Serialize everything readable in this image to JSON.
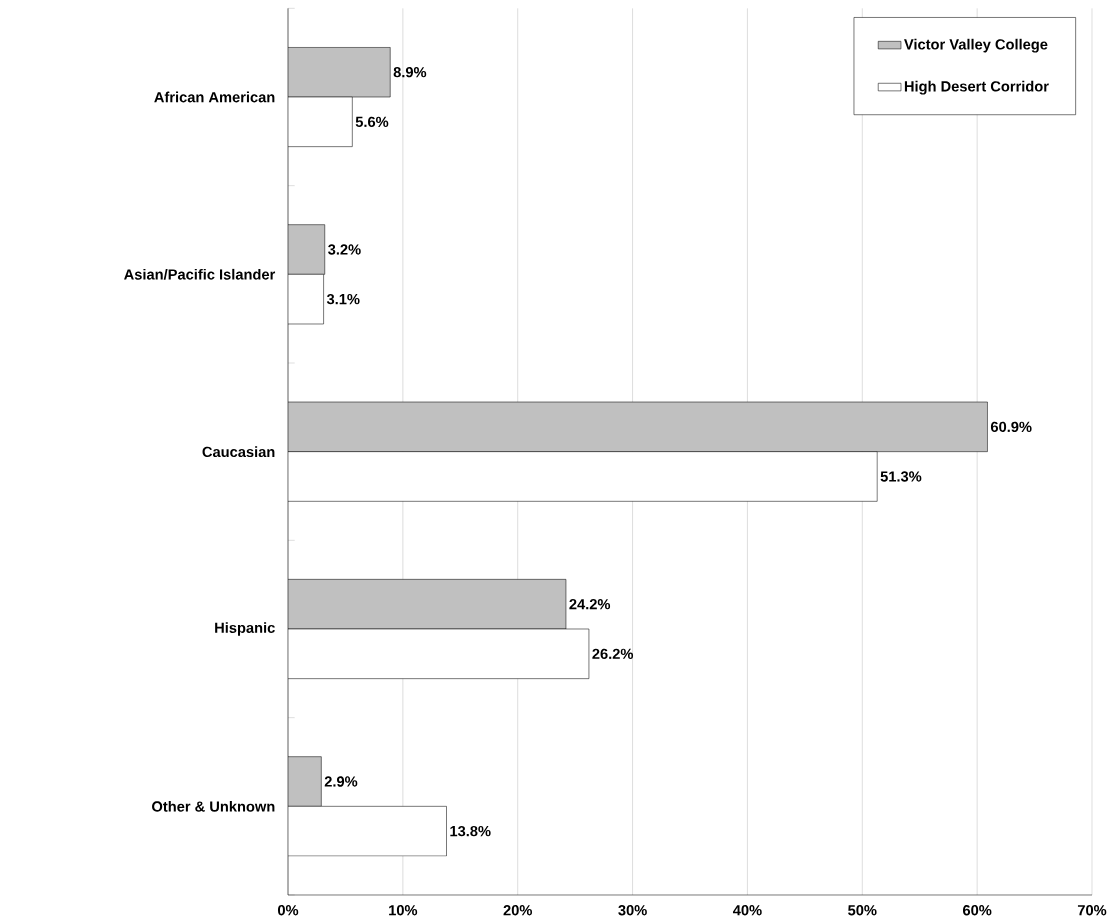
{
  "chart_data": {
    "type": "bar",
    "orientation": "horizontal",
    "categories": [
      "African American",
      "Asian/Pacific Islander",
      "Caucasian",
      "Hispanic",
      "Other & Unknown"
    ],
    "series": [
      {
        "name": "Victor Valley College",
        "color": "#c0c0c0",
        "values": [
          8.9,
          3.2,
          60.9,
          24.2,
          2.9
        ],
        "value_labels": [
          "8.9%",
          "3.2%",
          "60.9%",
          "24.2%",
          "2.9%"
        ]
      },
      {
        "name": "High Desert Corridor",
        "color": "#ffffff",
        "values": [
          5.6,
          3.1,
          51.3,
          26.2,
          13.8
        ],
        "value_labels": [
          "5.6%",
          "3.1%",
          "51.3%",
          "26.2%",
          "13.8%"
        ]
      }
    ],
    "xlim": [
      0,
      70
    ],
    "xticks": [
      {
        "value": 0,
        "label": "0%"
      },
      {
        "value": 10,
        "label": "10%"
      },
      {
        "value": 20,
        "label": "20%"
      },
      {
        "value": 30,
        "label": "30%"
      },
      {
        "value": 40,
        "label": "40%"
      },
      {
        "value": 50,
        "label": "50%"
      },
      {
        "value": 60,
        "label": "60%"
      },
      {
        "value": 70,
        "label": "70%"
      }
    ],
    "grid": "x",
    "legend": "top right"
  }
}
